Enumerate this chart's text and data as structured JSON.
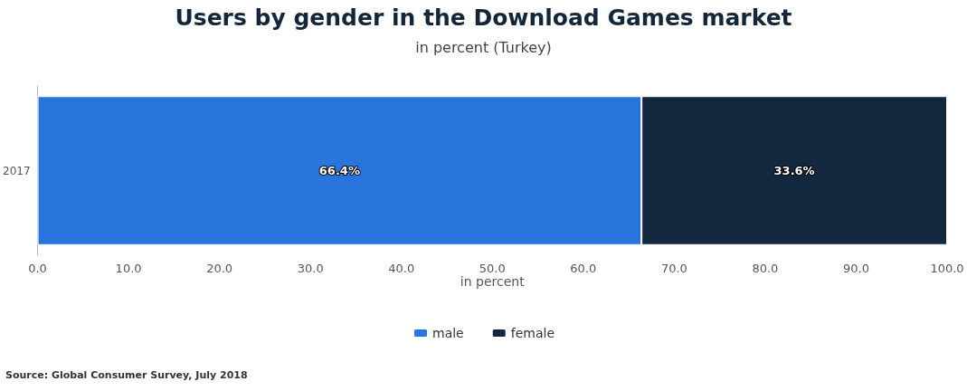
{
  "chart_data": {
    "type": "bar",
    "orientation": "horizontal",
    "stacked": true,
    "title": "Users by gender in the Download Games market",
    "subtitle": "in percent (Turkey)",
    "xlabel": "in percent",
    "categories": [
      "2017"
    ],
    "series": [
      {
        "name": "male",
        "color": "#2876dd",
        "values": [
          66.4
        ],
        "value_labels": [
          "66.4%"
        ]
      },
      {
        "name": "female",
        "color": "#13283f",
        "values": [
          33.6
        ],
        "value_labels": [
          "33.6%"
        ]
      }
    ],
    "xlim": [
      0,
      100
    ],
    "xticks": [
      {
        "value": 0,
        "label": "0.0"
      },
      {
        "value": 10,
        "label": "10.0"
      },
      {
        "value": 20,
        "label": "20.0"
      },
      {
        "value": 30,
        "label": "30.0"
      },
      {
        "value": 40,
        "label": "40.0"
      },
      {
        "value": 50,
        "label": "50.0"
      },
      {
        "value": 60,
        "label": "60.0"
      },
      {
        "value": 70,
        "label": "70.0"
      },
      {
        "value": 80,
        "label": "80.0"
      },
      {
        "value": 90,
        "label": "90.0"
      },
      {
        "value": 100,
        "label": "100.0"
      }
    ],
    "grid": false,
    "legend": "bottom",
    "annotations": [
      "Source: Global Consumer Survey, July 2018"
    ]
  }
}
